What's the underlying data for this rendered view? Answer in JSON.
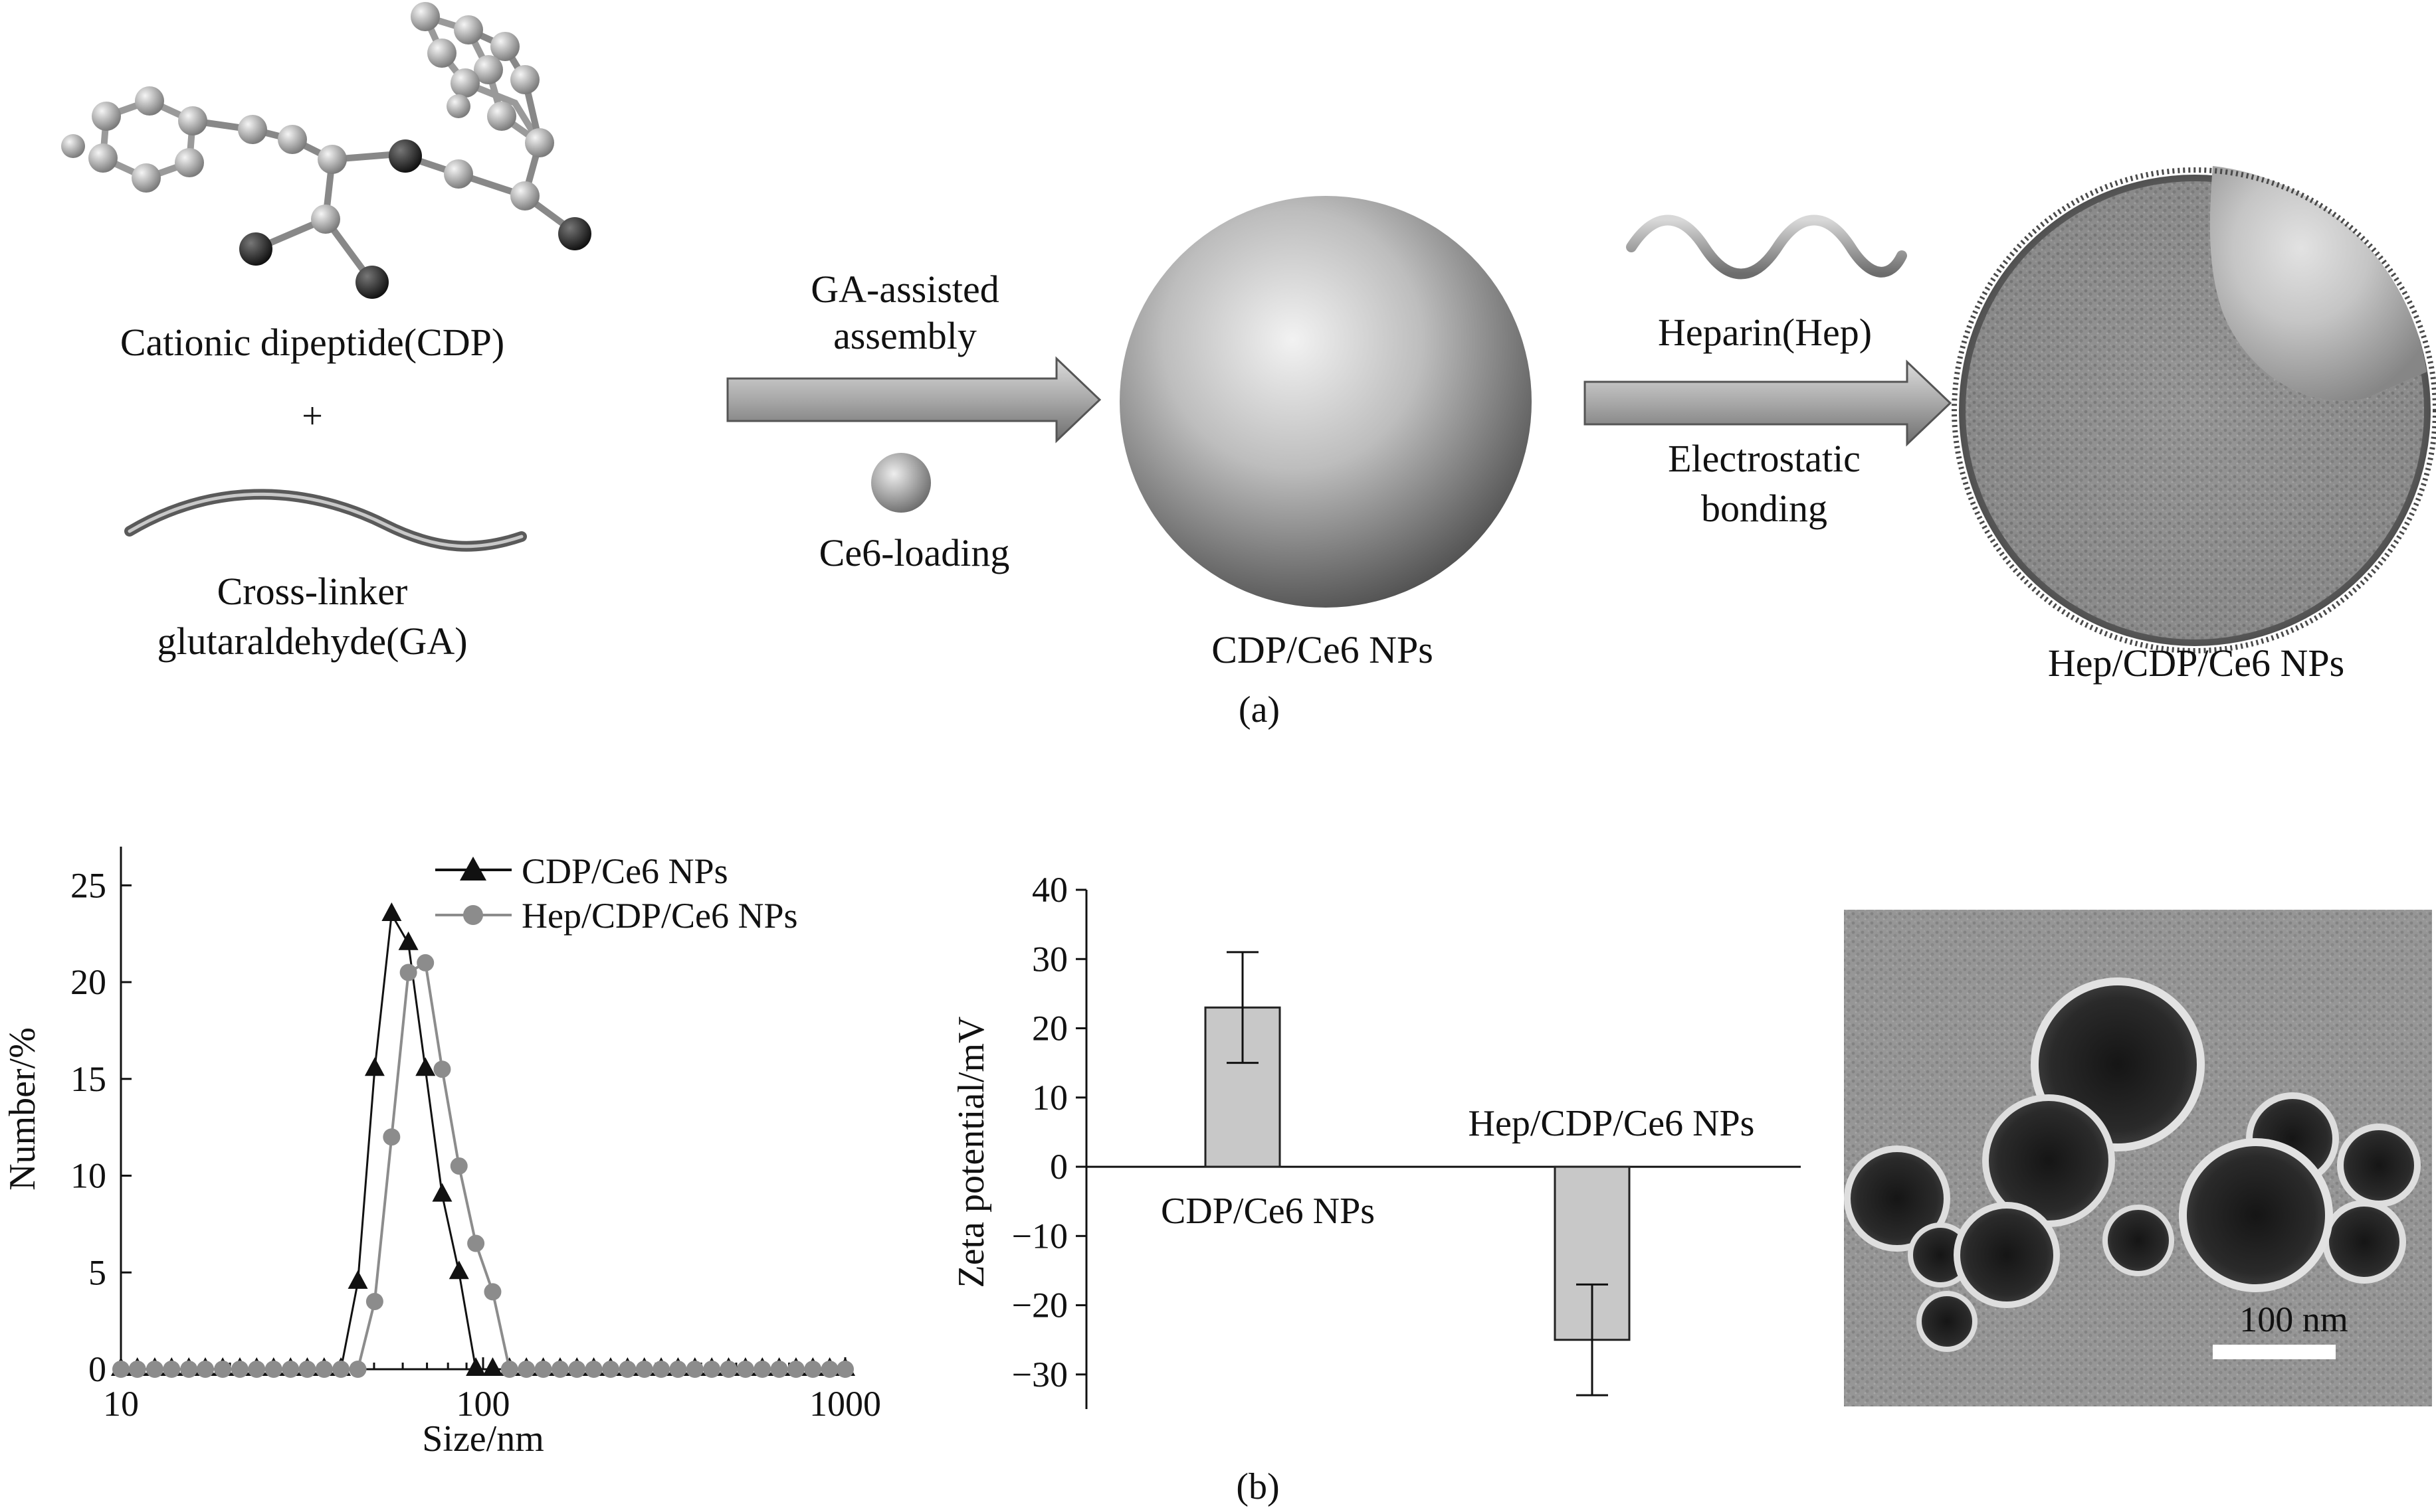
{
  "scheme": {
    "molecule_label": "Cationic dipeptide(CDP)",
    "plus": "+",
    "crosslinker_label_1": "Cross-linker",
    "crosslinker_label_2": "glutaraldehyde(GA)",
    "arrow1_label_1": "GA-assisted",
    "arrow1_label_2": "assembly",
    "ce6_label": "Ce6-loading",
    "np1_label": "CDP/Ce6 NPs",
    "heparin_label": "Heparin(Hep)",
    "arrow2_label_1": "Electrostatic",
    "arrow2_label_2": "bonding",
    "np2_label": "Hep/CDP/Ce6 NPs",
    "panel_label": "(a)"
  },
  "panel_b_label": "(b)",
  "tem": {
    "scale_bar_label": "100 nm",
    "scale_bar_nm": 100
  },
  "chart_data": [
    {
      "type": "line",
      "xscale": "log",
      "xlabel": "Size/nm",
      "ylabel": "Number/%",
      "xlim": [
        10,
        1000
      ],
      "ylim": [
        0,
        27
      ],
      "x_ticks": [
        "10",
        "100",
        "1000"
      ],
      "y_ticks": [
        "0",
        "5",
        "10",
        "15",
        "20",
        "25"
      ],
      "legend_position": "top-right",
      "series": [
        {
          "name": "CDP/Ce6 NPs",
          "marker": "triangle",
          "color": "#111111",
          "x": [
            10,
            11.1,
            12.4,
            13.8,
            15.4,
            17.1,
            19.1,
            21.3,
            23.7,
            26.4,
            29.4,
            32.7,
            36.4,
            40.5,
            45.1,
            50.2,
            55.9,
            62.2,
            69.3,
            77.1,
            85.8,
            95.5,
            106.3,
            118.3,
            131.7,
            146.6,
            163.2,
            181.6,
            202.1,
            225,
            250.5,
            278.8,
            310.3,
            345.4,
            384.5,
            428,
            476.4,
            530.3,
            590.3,
            657,
            731.3,
            814,
            906.1,
            1000
          ],
          "y": [
            0,
            0,
            0,
            0,
            0,
            0,
            0,
            0,
            0,
            0,
            0,
            0,
            0,
            0,
            4.5,
            15.5,
            23.5,
            22,
            15.5,
            9,
            5,
            0,
            0,
            0,
            0,
            0,
            0,
            0,
            0,
            0,
            0,
            0,
            0,
            0,
            0,
            0,
            0,
            0,
            0,
            0,
            0,
            0,
            0,
            0
          ]
        },
        {
          "name": "Hep/CDP/Ce6 NPs",
          "marker": "circle",
          "color": "#8c8c8c",
          "x": [
            10,
            11.1,
            12.4,
            13.8,
            15.4,
            17.1,
            19.1,
            21.3,
            23.7,
            26.4,
            29.4,
            32.7,
            36.4,
            40.5,
            45.1,
            50.2,
            55.9,
            62.2,
            69.3,
            77.1,
            85.8,
            95.5,
            106.3,
            118.3,
            131.7,
            146.6,
            163.2,
            181.6,
            202.1,
            225,
            250.5,
            278.8,
            310.3,
            345.4,
            384.5,
            428,
            476.4,
            530.3,
            590.3,
            657,
            731.3,
            814,
            906.1,
            1000
          ],
          "y": [
            0,
            0,
            0,
            0,
            0,
            0,
            0,
            0,
            0,
            0,
            0,
            0,
            0,
            0,
            0,
            3.5,
            12,
            20.5,
            21,
            15.5,
            10.5,
            6.5,
            4,
            0,
            0,
            0,
            0,
            0,
            0,
            0,
            0,
            0,
            0,
            0,
            0,
            0,
            0,
            0,
            0,
            0,
            0,
            0,
            0,
            0
          ]
        }
      ]
    },
    {
      "type": "bar",
      "ylabel": "Zeta potential/mV",
      "ylim": [
        -35,
        40
      ],
      "y_ticks": [
        "−30",
        "−20",
        "−10",
        "0",
        "10",
        "20",
        "30",
        "40"
      ],
      "categories": [
        "CDP/Ce6 NPs",
        "Hep/CDP/Ce6 NPs"
      ],
      "values": [
        23,
        -25
      ],
      "errors": [
        8,
        8
      ],
      "bar_color": "#c8c8c8"
    }
  ]
}
